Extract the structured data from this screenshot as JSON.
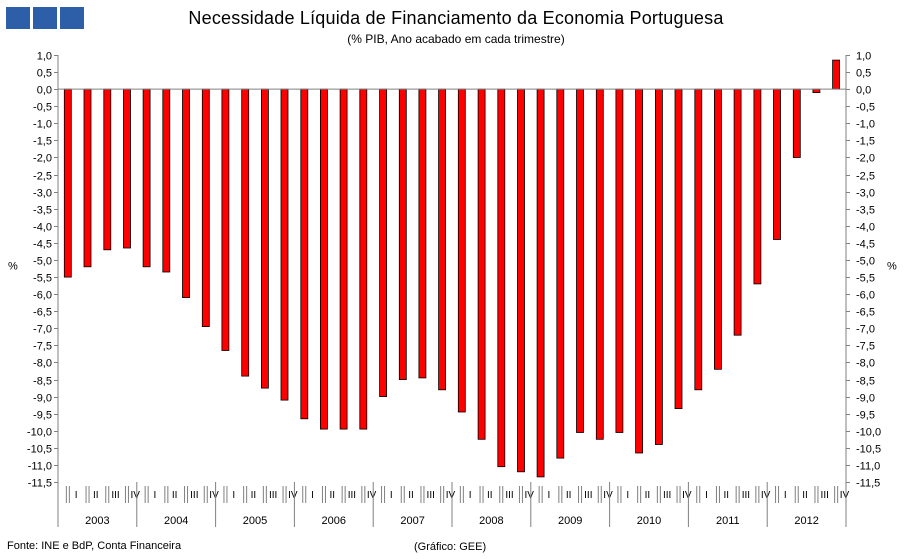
{
  "chart_data": {
    "type": "bar",
    "title": "Necessidade Líquida de Financiamento da Economia Portuguesa",
    "subtitle": "(% PIB, Ano acabado em cada trimestre)",
    "ylabel_left": "%",
    "ylabel_right": "%",
    "ylim": [
      -11.5,
      1.0
    ],
    "ytick_step": 0.5,
    "ytick_labels": [
      "1,0",
      "0,5",
      "0,0",
      "-0,5",
      "-1,0",
      "-1,5",
      "-2,0",
      "-2,5",
      "-3,0",
      "-3,5",
      "-4,0",
      "-4,5",
      "-5,0",
      "-5,5",
      "-6,0",
      "-6,5",
      "-7,0",
      "-7,5",
      "-8,0",
      "-8,5",
      "-9,0",
      "-9,5",
      "-10,0",
      "-10,5",
      "-11,0",
      "-11,5"
    ],
    "quarters": [
      "I",
      "II",
      "III",
      "IV"
    ],
    "years": [
      "2003",
      "2004",
      "2005",
      "2006",
      "2007",
      "2008",
      "2009",
      "2010",
      "2011",
      "2012"
    ],
    "bar_color": "#ff0000",
    "values": [
      -5.5,
      -5.2,
      -4.7,
      -4.65,
      -5.2,
      -5.35,
      -6.1,
      -6.95,
      -7.65,
      -8.4,
      -8.75,
      -9.1,
      -9.65,
      -9.95,
      -9.95,
      -9.95,
      -9.0,
      -8.5,
      -8.45,
      -8.8,
      -9.45,
      -10.25,
      -11.05,
      -11.2,
      -11.35,
      -10.8,
      -10.05,
      -10.25,
      -10.05,
      -10.65,
      -10.4,
      -9.35,
      -8.8,
      -8.2,
      -7.2,
      -5.7,
      -4.4,
      -2.0,
      -0.1,
      0.85
    ]
  },
  "footer": {
    "source": "Fonte: INE e BdP, Conta Financeira",
    "credit": "(Gráfico:  GEE)"
  }
}
